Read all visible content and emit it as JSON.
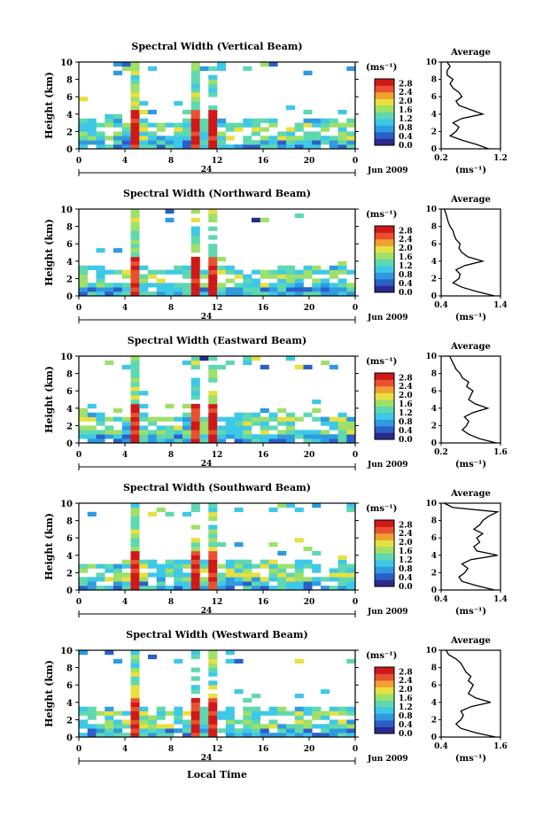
{
  "figure": {
    "colorbar_unit": "(ms⁻¹)",
    "date_label": "Jun 2009",
    "day_label": "24",
    "x_axis_title": "Local Time",
    "y_axis_title": "Height (km)",
    "avg_title": "Average",
    "avg_unit": "(ms⁻¹)"
  },
  "colorbar": {
    "ticks": [
      "0.0",
      "0.4",
      "0.8",
      "1.2",
      "1.6",
      "2.0",
      "2.4",
      "2.8"
    ],
    "colors": [
      "#2a2a8c",
      "#2b5fc8",
      "#2f9ae0",
      "#3ec8e8",
      "#5fd8b0",
      "#9ee06a",
      "#e8e040",
      "#f0a030",
      "#e85030",
      "#d01818"
    ]
  },
  "chart_data": [
    {
      "type": "heatmap",
      "title": "Spectral Width (Vertical Beam)",
      "xlabel": "Local Time",
      "ylabel": "Height (km)",
      "xlim": [
        0,
        24
      ],
      "ylim": [
        0,
        10
      ],
      "x_ticks": [
        "0",
        "4",
        "8",
        "12",
        "16",
        "20",
        "0"
      ],
      "y_ticks": [
        "0",
        "2",
        "4",
        "6",
        "8",
        "10"
      ],
      "colorbar_range": [
        0,
        2.8
      ],
      "profile": {
        "title": "Average",
        "xlabel": "(ms⁻¹)",
        "xlim": [
          0.2,
          1.2
        ],
        "x_ticks": [
          "0.2",
          "1.2"
        ],
        "ylim": [
          0,
          10
        ],
        "x": [
          1.0,
          0.8,
          0.55,
          0.35,
          0.45,
          0.5,
          0.4,
          0.55,
          0.9,
          0.7,
          0.5,
          0.45,
          0.55,
          0.5,
          0.4,
          0.35,
          0.4,
          0.3,
          0.3,
          0.35,
          0.3
        ],
        "y": [
          0,
          0.5,
          1,
          1.5,
          2,
          2.5,
          3,
          3.5,
          4,
          4.5,
          5,
          5.5,
          6,
          6.5,
          7,
          7.5,
          8,
          8.5,
          9,
          9.5,
          10
        ]
      }
    },
    {
      "type": "heatmap",
      "title": "Spectral Width (Northward Beam)",
      "xlabel": "Local Time",
      "ylabel": "Height (km)",
      "xlim": [
        0,
        24
      ],
      "ylim": [
        0,
        10
      ],
      "x_ticks": [
        "0",
        "4",
        "8",
        "12",
        "16",
        "20",
        "0"
      ],
      "y_ticks": [
        "0",
        "2",
        "4",
        "6",
        "8",
        "10"
      ],
      "colorbar_range": [
        0,
        2.8
      ],
      "profile": {
        "title": "Average",
        "xlabel": "(ms⁻¹)",
        "xlim": [
          0.4,
          1.4
        ],
        "x_ticks": [
          "0.4",
          "1.4"
        ],
        "ylim": [
          0,
          10
        ],
        "x": [
          1.3,
          1.0,
          0.75,
          0.6,
          0.7,
          0.72,
          0.65,
          0.8,
          1.1,
          0.85,
          0.75,
          0.7,
          0.72,
          0.65,
          0.62,
          0.6,
          0.55,
          0.52,
          0.5,
          0.48,
          0.45
        ],
        "y": [
          0,
          0.5,
          1,
          1.5,
          2,
          2.5,
          3,
          3.5,
          4,
          4.5,
          5,
          5.5,
          6,
          6.5,
          7,
          7.5,
          8,
          8.5,
          9,
          9.5,
          10
        ]
      }
    },
    {
      "type": "heatmap",
      "title": "Spectral Width (Eastward Beam)",
      "xlabel": "Local Time",
      "ylabel": "Height (km)",
      "xlim": [
        0,
        24
      ],
      "ylim": [
        0,
        10
      ],
      "x_ticks": [
        "0",
        "4",
        "8",
        "12",
        "16",
        "20",
        "0"
      ],
      "y_ticks": [
        "0",
        "2",
        "4",
        "6",
        "8",
        "10"
      ],
      "colorbar_range": [
        0,
        2.8
      ],
      "profile": {
        "title": "Average",
        "xlabel": "(ms⁻¹)",
        "xlim": [
          0.2,
          1.6
        ],
        "x_ticks": [
          "0.2",
          "1.6"
        ],
        "ylim": [
          0,
          10
        ],
        "x": [
          1.5,
          1.1,
          0.85,
          0.7,
          0.8,
          0.85,
          0.75,
          0.95,
          1.3,
          1.0,
          0.85,
          0.9,
          0.95,
          0.8,
          0.85,
          0.7,
          0.65,
          0.55,
          0.5,
          0.45,
          0.4
        ],
        "y": [
          0,
          0.5,
          1,
          1.5,
          2,
          2.5,
          3,
          3.5,
          4,
          4.5,
          5,
          5.5,
          6,
          6.5,
          7,
          7.5,
          8,
          8.5,
          9,
          9.5,
          10
        ]
      }
    },
    {
      "type": "heatmap",
      "title": "Spectral Width (Southward Beam)",
      "xlabel": "Local Time",
      "ylabel": "Height (km)",
      "xlim": [
        0,
        24
      ],
      "ylim": [
        0,
        10
      ],
      "x_ticks": [
        "0",
        "4",
        "8",
        "12",
        "16",
        "20",
        "0"
      ],
      "y_ticks": [
        "0",
        "2",
        "4",
        "6",
        "8",
        "10"
      ],
      "colorbar_range": [
        0,
        2.8
      ],
      "profile": {
        "title": "Average",
        "xlabel": "(ms⁻¹)",
        "xlim": [
          0.4,
          1.4
        ],
        "x_ticks": [
          "0.4",
          "1.4"
        ],
        "ylim": [
          0,
          10
        ],
        "x": [
          1.3,
          1.0,
          0.75,
          0.7,
          0.8,
          0.85,
          0.75,
          0.9,
          1.35,
          1.0,
          0.95,
          1.05,
          1.0,
          1.1,
          0.95,
          1.05,
          1.1,
          1.2,
          1.35,
          0.6,
          0.45
        ],
        "y": [
          0,
          0.5,
          1,
          1.5,
          2,
          2.5,
          3,
          3.5,
          4,
          4.5,
          5,
          5.5,
          6,
          6.5,
          7,
          7.5,
          8,
          8.5,
          9,
          9.5,
          10
        ]
      }
    },
    {
      "type": "heatmap",
      "title": "Spectral Width (Westward Beam)",
      "xlabel": "Local Time",
      "ylabel": "Height (km)",
      "xlim": [
        0,
        24
      ],
      "ylim": [
        0,
        10
      ],
      "x_ticks": [
        "0",
        "4",
        "8",
        "12",
        "16",
        "20",
        "0"
      ],
      "y_ticks": [
        "0",
        "2",
        "4",
        "6",
        "8",
        "10"
      ],
      "colorbar_range": [
        0,
        2.8
      ],
      "profile": {
        "title": "Average",
        "xlabel": "(ms⁻¹)",
        "xlim": [
          0.4,
          1.6
        ],
        "x_ticks": [
          "0.4",
          "1.6"
        ],
        "ylim": [
          0,
          10
        ],
        "x": [
          1.5,
          1.1,
          0.8,
          0.7,
          0.8,
          0.85,
          0.8,
          1.0,
          1.4,
          1.1,
          0.95,
          1.0,
          1.05,
          0.95,
          1.0,
          0.9,
          0.85,
          0.8,
          0.7,
          0.55,
          0.5
        ],
        "y": [
          0,
          0.5,
          1,
          1.5,
          2,
          2.5,
          3,
          3.5,
          4,
          4.5,
          5,
          5.5,
          6,
          6.5,
          7,
          7.5,
          8,
          8.5,
          9,
          9.5,
          10
        ]
      }
    }
  ]
}
